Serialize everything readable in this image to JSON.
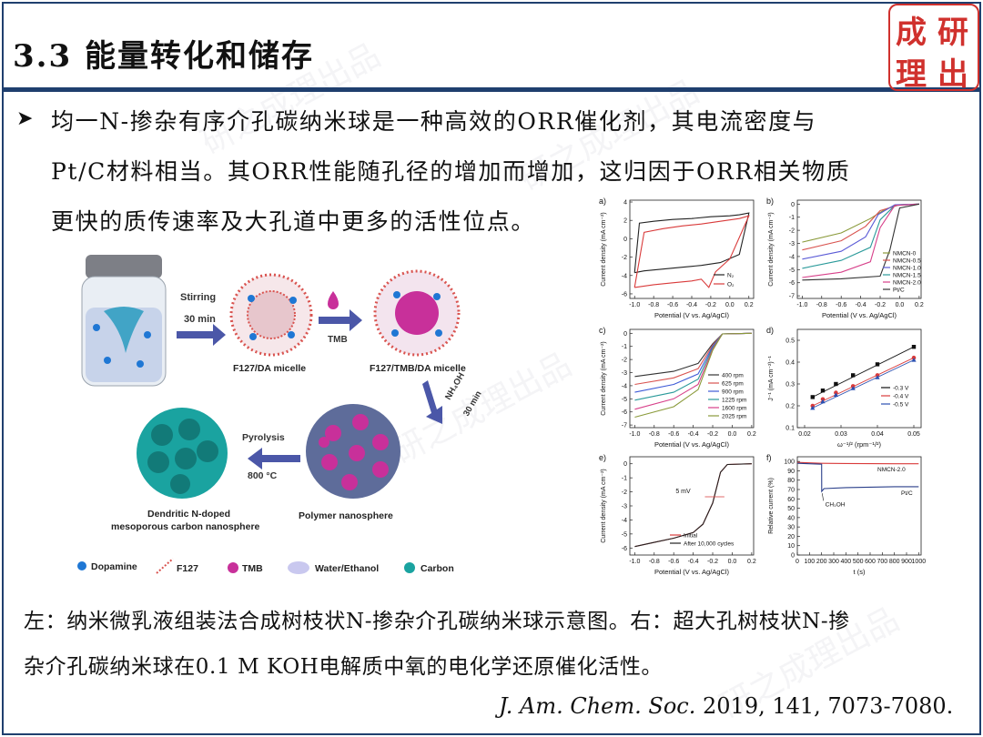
{
  "header": {
    "title": "3.3 能量转化和储存",
    "logo_chars": [
      "成",
      "研",
      "理",
      "出"
    ]
  },
  "body_text": {
    "lines": [
      "均一N-掺杂有序介孔碳纳米球是一种高效的ORR催化剂，其电流密度与",
      "Pt/C材料相当。其ORR性能随孔径的增加而增加，这归因于ORR相关物质",
      "更快的质传速率及大孔道中更多的活性位点。"
    ]
  },
  "scheme": {
    "stirring": "Stirring",
    "stirring_time": "30 min",
    "tmb_arrow": "TMB",
    "micelle1": "F127/DA micelle",
    "micelle2": "F127/TMB/DA micelle",
    "nh4oh": "NH₄OH",
    "nh4oh_time": "30 min",
    "pyrolysis": "Pyrolysis",
    "pyrolysis_temp": "800 °C",
    "product_line1": "Dendritic N-doped",
    "product_line2": "mesoporous carbon nanosphere",
    "polymer": "Polymer nanosphere",
    "legend": [
      "Dopamine",
      "F127",
      "TMB",
      "Water/Ethanol",
      "Carbon"
    ],
    "colors": {
      "dopamine": "#1f77d4",
      "f127": "#d9534f",
      "tmb": "#c8309a",
      "water": "#c9c8ef",
      "carbon": "#1aa3a0"
    }
  },
  "chart_data": [
    {
      "type": "line",
      "panel": "a)",
      "xlabel": "Potential (V vs. Ag/AgCl)",
      "ylabel": "Current density (mA cm⁻²)",
      "xlim": [
        -1.05,
        0.25
      ],
      "ylim": [
        -6.5,
        4.2
      ],
      "xticks": [
        "-1.0",
        "-0.8",
        "-0.6",
        "-0.4",
        "-0.2",
        "0.0",
        "0.2"
      ],
      "yticks": [
        "4",
        "2",
        "0",
        "-2",
        "-4",
        "-6"
      ],
      "series": [
        {
          "name": "N₂",
          "color": "#222222",
          "x": [
            -1.0,
            -0.9,
            -0.7,
            -0.5,
            -0.3,
            -0.1,
            0.1,
            0.2,
            0.2,
            0.1,
            0.0,
            -0.2,
            -0.4,
            -0.6,
            -0.8,
            -0.95,
            -1.0
          ],
          "y": [
            -3.7,
            -3.5,
            -3.3,
            -3.1,
            -2.9,
            -2.6,
            -1.7,
            2.8,
            2.8,
            2.6,
            2.5,
            2.4,
            2.2,
            2.1,
            1.9,
            1.7,
            -3.7
          ]
        },
        {
          "name": "O₂",
          "color": "#d93a3a",
          "x": [
            -1.0,
            -0.8,
            -0.6,
            -0.4,
            -0.3,
            -0.22,
            -0.15,
            0.0,
            0.2,
            0.2,
            0.1,
            -0.1,
            -0.3,
            -0.5,
            -0.7,
            -0.9,
            -1.0
          ],
          "y": [
            -5.3,
            -5.0,
            -4.8,
            -4.6,
            -4.4,
            -5.3,
            -3.6,
            -2.2,
            2.5,
            2.5,
            2.2,
            1.9,
            1.6,
            1.4,
            1.1,
            0.7,
            -5.3
          ]
        }
      ]
    },
    {
      "type": "line",
      "panel": "b)",
      "xlabel": "Potential (V vs. Ag/AgCl)",
      "ylabel": "Current density (mA cm⁻²)",
      "xlim": [
        -1.05,
        0.22
      ],
      "ylim": [
        -7.2,
        0.3
      ],
      "xticks": [
        "-1.0",
        "-0.8",
        "-0.6",
        "-0.4",
        "-0.2",
        "0.0",
        "0.2"
      ],
      "yticks": [
        "0",
        "-1",
        "-2",
        "-3",
        "-4",
        "-5",
        "-6",
        "-7"
      ],
      "series": [
        {
          "name": "NMCN-0",
          "color": "#8a9a3a",
          "x": [
            -1.0,
            -0.6,
            -0.3,
            -0.15,
            0.0,
            0.2
          ],
          "y": [
            -2.9,
            -2.2,
            -1.1,
            -0.4,
            -0.05,
            0
          ]
        },
        {
          "name": "NMCN-0.5",
          "color": "#d9534f",
          "x": [
            -1.0,
            -0.6,
            -0.35,
            -0.2,
            0.0,
            0.2
          ],
          "y": [
            -3.5,
            -2.8,
            -1.7,
            -0.5,
            -0.05,
            0
          ]
        },
        {
          "name": "NMCN-1.0",
          "color": "#5a5ad6",
          "x": [
            -1.0,
            -0.6,
            -0.35,
            -0.22,
            -0.05,
            0.2
          ],
          "y": [
            -4.2,
            -3.6,
            -2.5,
            -0.8,
            -0.05,
            0
          ]
        },
        {
          "name": "NMCN-1.5",
          "color": "#2a9a9a",
          "x": [
            -1.0,
            -0.6,
            -0.3,
            -0.2,
            -0.05,
            0.2
          ],
          "y": [
            -4.9,
            -4.3,
            -3.3,
            -1.2,
            -0.1,
            0
          ]
        },
        {
          "name": "NMCN-2.0",
          "color": "#d7408a",
          "x": [
            -1.0,
            -0.6,
            -0.3,
            -0.2,
            -0.05,
            0.2
          ],
          "y": [
            -5.6,
            -5.2,
            -4.4,
            -1.8,
            -0.1,
            0
          ]
        },
        {
          "name": "Pt/C",
          "color": "#333333",
          "x": [
            -1.0,
            -0.6,
            -0.2,
            -0.1,
            0.0,
            0.2
          ],
          "y": [
            -5.8,
            -5.7,
            -5.5,
            -3.5,
            -0.3,
            0
          ]
        }
      ]
    },
    {
      "type": "line",
      "panel": "c)",
      "xlabel": "Potential (V vs. Ag/AgCl)",
      "ylabel": "Current density (mA cm⁻²)",
      "xlim": [
        -1.05,
        0.22
      ],
      "ylim": [
        -7.2,
        0.3
      ],
      "xticks": [
        "-1.0",
        "-0.8",
        "-0.6",
        "-0.4",
        "-0.2",
        "0.0",
        "0.2"
      ],
      "yticks": [
        "0",
        "-1",
        "-2",
        "-3",
        "-4",
        "-5",
        "-6",
        "-7"
      ],
      "series": [
        {
          "name": "400 rpm",
          "color": "#333333",
          "x": [
            -1.0,
            -0.6,
            -0.35,
            -0.2,
            -0.1,
            0.2
          ],
          "y": [
            -3.3,
            -2.9,
            -2.3,
            -0.8,
            -0.05,
            0
          ]
        },
        {
          "name": "625 rpm",
          "color": "#d9534f",
          "x": [
            -1.0,
            -0.6,
            -0.35,
            -0.2,
            -0.1,
            0.2
          ],
          "y": [
            -3.9,
            -3.4,
            -2.7,
            -0.9,
            -0.05,
            0
          ]
        },
        {
          "name": "900 rpm",
          "color": "#3d5ad6",
          "x": [
            -1.0,
            -0.6,
            -0.35,
            -0.2,
            -0.1,
            0.2
          ],
          "y": [
            -4.5,
            -3.9,
            -3.1,
            -1.0,
            -0.05,
            0
          ]
        },
        {
          "name": "1225 rpm",
          "color": "#2a9a9a",
          "x": [
            -1.0,
            -0.6,
            -0.35,
            -0.2,
            -0.1,
            0.2
          ],
          "y": [
            -5.1,
            -4.5,
            -3.5,
            -1.1,
            -0.05,
            0
          ]
        },
        {
          "name": "1600 rpm",
          "color": "#d7408a",
          "x": [
            -1.0,
            -0.6,
            -0.35,
            -0.2,
            -0.1,
            0.2
          ],
          "y": [
            -5.8,
            -5.0,
            -3.9,
            -1.2,
            -0.05,
            0
          ]
        },
        {
          "name": "2025 rpm",
          "color": "#8a9a3a",
          "x": [
            -1.0,
            -0.6,
            -0.35,
            -0.2,
            -0.1,
            0.2
          ],
          "y": [
            -6.4,
            -5.6,
            -4.3,
            -1.3,
            -0.05,
            0
          ]
        }
      ]
    },
    {
      "type": "scatter",
      "panel": "d)",
      "xlabel": "ω⁻¹/² (rpm⁻¹/²)",
      "ylabel": "J⁻¹ (mA cm⁻²)⁻¹",
      "xlim": [
        0.018,
        0.052
      ],
      "ylim": [
        0.1,
        0.55
      ],
      "xticks": [
        "0.02",
        "0.03",
        "0.04",
        "0.05"
      ],
      "yticks": [
        "0.5",
        "0.4",
        "0.3",
        "0.2",
        "0.1"
      ],
      "series": [
        {
          "name": "-0.3 V",
          "color": "#111111",
          "marker": "square",
          "x": [
            0.0222,
            0.025,
            0.0286,
            0.0333,
            0.04,
            0.05
          ],
          "y": [
            0.24,
            0.27,
            0.3,
            0.34,
            0.39,
            0.47
          ]
        },
        {
          "name": "-0.4 V",
          "color": "#d93a3a",
          "marker": "circle",
          "x": [
            0.0222,
            0.025,
            0.0286,
            0.0333,
            0.04,
            0.05
          ],
          "y": [
            0.2,
            0.23,
            0.26,
            0.29,
            0.34,
            0.42
          ]
        },
        {
          "name": "-0.5 V",
          "color": "#2a4fb0",
          "marker": "triangle",
          "x": [
            0.0222,
            0.025,
            0.0286,
            0.0333,
            0.04,
            0.05
          ],
          "y": [
            0.19,
            0.22,
            0.25,
            0.28,
            0.33,
            0.41
          ]
        }
      ]
    },
    {
      "type": "line",
      "panel": "e)",
      "xlabel": "Potential (V vs. Ag/AgCl)",
      "ylabel": "Current density (mA cm⁻²)",
      "xlim": [
        -1.05,
        0.22
      ],
      "ylim": [
        -6.5,
        0.5
      ],
      "xticks": [
        "-1.0",
        "-0.8",
        "-0.6",
        "-0.4",
        "-0.2",
        "0.0",
        "0.2"
      ],
      "yticks": [
        "0",
        "-1",
        "-2",
        "-3",
        "-4",
        "-5",
        "-6"
      ],
      "annotation": "5 mV",
      "series": [
        {
          "name": "Initial",
          "color": "#d93a3a",
          "x": [
            -1.0,
            -0.8,
            -0.6,
            -0.4,
            -0.3,
            -0.2,
            -0.12,
            -0.05,
            0.2
          ],
          "y": [
            -5.9,
            -5.6,
            -5.3,
            -4.9,
            -4.3,
            -2.8,
            -0.6,
            -0.05,
            0
          ]
        },
        {
          "name": "After 10,000 cycles",
          "color": "#222222",
          "x": [
            -1.0,
            -0.8,
            -0.6,
            -0.4,
            -0.3,
            -0.2,
            -0.12,
            -0.05,
            0.2
          ],
          "y": [
            -5.9,
            -5.6,
            -5.3,
            -4.9,
            -4.3,
            -2.8,
            -0.6,
            -0.05,
            0
          ]
        }
      ]
    },
    {
      "type": "line",
      "panel": "f)",
      "xlabel": "t (s)",
      "ylabel": "Relative current (%)",
      "xlim": [
        0,
        1020
      ],
      "ylim": [
        0,
        105
      ],
      "xticks": [
        "0",
        "100",
        "200",
        "300",
        "400",
        "500",
        "600",
        "700",
        "800",
        "900",
        "1000"
      ],
      "yticks": [
        "100",
        "90",
        "80",
        "70",
        "60",
        "50",
        "40",
        "30",
        "20",
        "10",
        "0"
      ],
      "annotation": "CH₃OH",
      "series": [
        {
          "name": "NMCN-2.0",
          "color": "#d93a3a",
          "x": [
            0,
            100,
            200,
            201,
            400,
            600,
            800,
            1000
          ],
          "y": [
            99,
            98.5,
            98,
            98,
            97.8,
            97.6,
            97.5,
            97.5
          ]
        },
        {
          "name": "Pt/C",
          "color": "#2a3f8a",
          "x": [
            0,
            100,
            200,
            201,
            220,
            400,
            600,
            800,
            1000
          ],
          "y": [
            98,
            97.5,
            97,
            68,
            71,
            72,
            72.5,
            73,
            73
          ]
        }
      ]
    }
  ],
  "caption": {
    "lines": [
      "左：纳米微乳液组装法合成树枝状N-掺杂介孔碳纳米球示意图。右：超大孔树枝状N-掺",
      "杂介孔碳纳米球在0.1 M KOH电解质中氧的电化学还原催化活性。"
    ]
  },
  "reference": {
    "journal": "J. Am. Chem. Soc.",
    "citation": " 2019, 141, 7073-7080."
  }
}
